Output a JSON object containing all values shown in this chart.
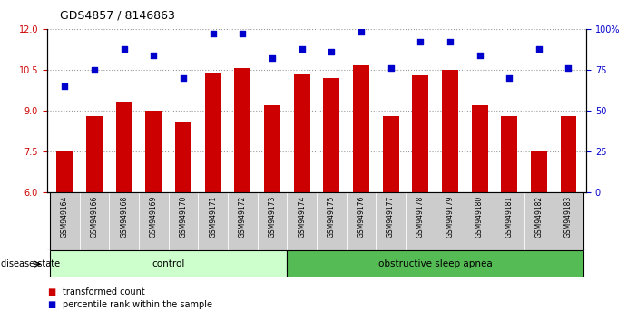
{
  "title": "GDS4857 / 8146863",
  "samples": [
    "GSM949164",
    "GSM949166",
    "GSM949168",
    "GSM949169",
    "GSM949170",
    "GSM949171",
    "GSM949172",
    "GSM949173",
    "GSM949174",
    "GSM949175",
    "GSM949176",
    "GSM949177",
    "GSM949178",
    "GSM949179",
    "GSM949180",
    "GSM949181",
    "GSM949182",
    "GSM949183"
  ],
  "bar_values": [
    7.5,
    8.8,
    9.3,
    9.0,
    8.6,
    10.4,
    10.55,
    9.2,
    10.35,
    10.2,
    10.65,
    8.8,
    10.3,
    10.5,
    9.2,
    8.8,
    7.5,
    8.8
  ],
  "dot_values_pct": [
    65,
    75,
    88,
    84,
    70,
    97,
    97,
    82,
    88,
    86,
    98,
    76,
    92,
    92,
    84,
    70,
    88,
    76
  ],
  "ylim_left": [
    6,
    12
  ],
  "ylim_right": [
    0,
    100
  ],
  "yticks_left": [
    6,
    7.5,
    9,
    10.5,
    12
  ],
  "yticks_right": [
    0,
    25,
    50,
    75,
    100
  ],
  "ytick_labels_right": [
    "0",
    "25",
    "50",
    "75",
    "100%"
  ],
  "bar_color": "#cc0000",
  "dot_color": "#0000cc",
  "control_count": 8,
  "control_label": "control",
  "disease_label": "obstructive sleep apnea",
  "legend_bar_label": "transformed count",
  "legend_dot_label": "percentile rank within the sample",
  "disease_state_label": "disease state",
  "control_bg_color": "#ccffcc",
  "disease_bg_color": "#55bb55",
  "tick_label_bg": "#cccccc",
  "gridline_color": "#000000",
  "gridline_alpha": 0.4
}
